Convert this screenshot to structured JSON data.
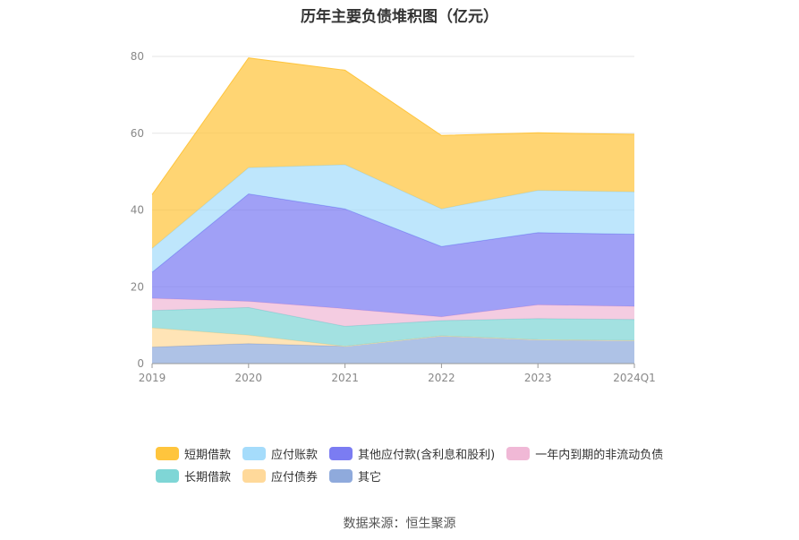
{
  "chart_data": {
    "type": "area",
    "title": "历年主要负债堆积图（亿元）",
    "categories": [
      "2019",
      "2020",
      "2021",
      "2022",
      "2023",
      "2024Q1"
    ],
    "y_ticks": [
      "0",
      "20",
      "40",
      "60",
      "80"
    ],
    "ylim": [
      0,
      80
    ],
    "stacked": true,
    "grid": true,
    "legend_position": "bottom",
    "series": [
      {
        "name": "其它",
        "color": "#8faadc",
        "values": [
          4.3,
          5.2,
          4.5,
          7.2,
          6.2,
          6.0
        ]
      },
      {
        "name": "应付债券",
        "color": "#ffd99a",
        "values": [
          5.0,
          2.2,
          0.0,
          0.0,
          0.0,
          0.0
        ]
      },
      {
        "name": "长期借款",
        "color": "#7fd6d6",
        "values": [
          4.5,
          7.2,
          5.2,
          4.0,
          5.5,
          5.5
        ]
      },
      {
        "name": "一年内到期的非流动负债",
        "color": "#f0b8d6",
        "values": [
          3.2,
          1.6,
          4.6,
          1.0,
          3.6,
          3.4
        ]
      },
      {
        "name": "其他应付款(含利息和股利)",
        "color": "#7b7cf2",
        "values": [
          6.8,
          28.0,
          26.0,
          18.3,
          18.8,
          18.8
        ]
      },
      {
        "name": "应付账款",
        "color": "#a5dcfb",
        "values": [
          6.2,
          6.8,
          11.5,
          9.8,
          11.0,
          11.0
        ]
      },
      {
        "name": "短期借款",
        "color": "#ffc53d",
        "values": [
          14.0,
          28.6,
          24.6,
          19.1,
          15.0,
          15.0
        ]
      }
    ],
    "legend_rows": [
      [
        "短期借款",
        "应付账款",
        "其他应付款(含利息和股利)",
        "一年内到期的非流动负债"
      ],
      [
        "长期借款",
        "应付债券",
        "其它"
      ]
    ],
    "source": "数据来源：恒生聚源"
  }
}
